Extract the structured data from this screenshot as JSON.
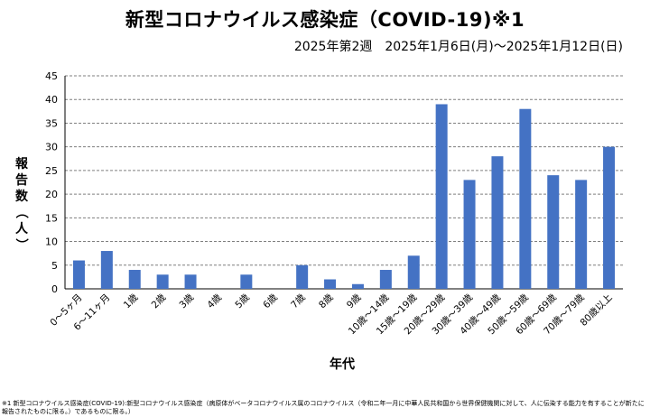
{
  "title": "新型コロナウイルス感染症（COVID-19)※1",
  "subtitle": "2025年第2週　2025年1月6日(月)～2025年1月12日(日)",
  "footnote": "※1 新型コロナウイルス感染症(COVID-19):新型コロナウイルス感染症（病原体がベータコロナウイルス属のコロナウイルス（令和二年一月に中華人民共和国から世界保健機関に対して、人に伝染する能力を有することが新たに報告されたものに限る。）であるものに限る。）",
  "chart_data": {
    "type": "bar",
    "title": "新型コロナウイルス感染症（COVID-19)※1",
    "subtitle": "2025年第2週　2025年1月6日(月)～2025年1月12日(日)",
    "xlabel": "年代",
    "ylabel": "報告数（人）",
    "ylim": [
      0,
      45
    ],
    "yticks": [
      0,
      5,
      10,
      15,
      20,
      25,
      30,
      35,
      40,
      45
    ],
    "grid": true,
    "bar_color": "#4472C4",
    "categories": [
      "0～5ヶ月",
      "6～11ヶ月",
      "1歳",
      "2歳",
      "3歳",
      "4歳",
      "5歳",
      "6歳",
      "7歳",
      "8歳",
      "9歳",
      "10歳～14歳",
      "15歳～19歳",
      "20歳～29歳",
      "30歳～39歳",
      "40歳～49歳",
      "50歳～59歳",
      "60歳～69歳",
      "70歳～79歳",
      "80歳以上"
    ],
    "values": [
      6,
      8,
      4,
      3,
      3,
      0,
      3,
      0,
      5,
      2,
      1,
      4,
      7,
      39,
      23,
      28,
      38,
      24,
      23,
      30
    ]
  }
}
